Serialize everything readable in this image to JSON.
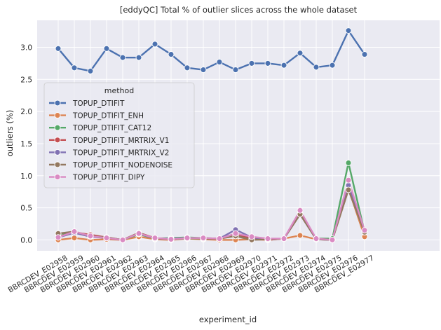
{
  "chart_data": {
    "type": "line",
    "title": "[eddyQC] Total % of outlier slices across the whole dataset",
    "xlabel": "experiment_id",
    "ylabel": "outliers (%)",
    "ylim": [
      -0.17,
      3.42
    ],
    "yticks": [
      0.0,
      0.5,
      1.0,
      1.5,
      2.0,
      2.5,
      3.0
    ],
    "ytick_labels": [
      "0.0",
      "0.5",
      "1.0",
      "1.5",
      "2.0",
      "2.5",
      "3.0"
    ],
    "grid": true,
    "legend_title": "method",
    "legend_position": "center-left",
    "categories": [
      "BBRCDEV_E02958",
      "BBRCDEV_E02959",
      "BBRCDEV_E02960",
      "BBRCDEV_E02961",
      "BBRCDEV_E02962",
      "BBRCDEV_E02963",
      "BBRCDEV_E02964",
      "BBRCDEV_E02965",
      "BBRCDEV_E02966",
      "BBRCDEV_E02967",
      "BBRCDEV_E02968",
      "BBRCDEV_E02969",
      "BBRCDEV_E02970",
      "BBRCDEV_E02971",
      "BBRCDEV_E02972",
      "BBRCDEV_E02973",
      "BBRCDEV_E02974",
      "BBRCDEV_E02975",
      "BBRCDEV_E02976",
      "BBRCDEV_E02977"
    ],
    "series": [
      {
        "name": "TOPUP_DTIFIT",
        "color": "#4c72b0",
        "values": [
          2.98,
          2.68,
          2.63,
          2.98,
          2.84,
          2.84,
          3.05,
          2.89,
          2.68,
          2.65,
          2.77,
          2.65,
          2.75,
          2.75,
          2.72,
          2.91,
          2.69,
          2.72,
          3.26,
          2.89
        ]
      },
      {
        "name": "TOPUP_DTIFIT_ENH",
        "color": "#dd8452",
        "values": [
          0.0,
          0.03,
          0.0,
          0.01,
          0.0,
          0.05,
          0.01,
          0.0,
          0.02,
          0.01,
          0.0,
          0.0,
          0.01,
          0.0,
          0.02,
          0.07,
          0.01,
          0.0,
          0.8,
          0.05
        ]
      },
      {
        "name": "TOPUP_DTIFIT_CAT12",
        "color": "#55a868",
        "values": [
          0.09,
          0.12,
          0.06,
          0.04,
          0.0,
          0.09,
          0.02,
          0.03,
          0.04,
          0.03,
          0.02,
          0.07,
          0.02,
          0.01,
          0.02,
          0.41,
          0.02,
          0.02,
          1.2,
          0.12
        ]
      },
      {
        "name": "TOPUP_DTIFIT_MRTRIX_V1",
        "color": "#c44e52",
        "values": [
          0.05,
          0.12,
          0.08,
          0.04,
          0.0,
          0.11,
          0.03,
          0.01,
          0.03,
          0.02,
          0.02,
          0.09,
          0.03,
          0.0,
          0.02,
          0.41,
          0.02,
          0.0,
          0.85,
          0.13
        ]
      },
      {
        "name": "TOPUP_DTIFIT_MRTRIX_V2",
        "color": "#8172b3",
        "values": [
          0.04,
          0.11,
          0.05,
          0.03,
          0.0,
          0.1,
          0.02,
          0.02,
          0.03,
          0.02,
          0.02,
          0.16,
          0.04,
          0.01,
          0.02,
          0.4,
          0.01,
          0.0,
          0.85,
          0.13
        ]
      },
      {
        "name": "TOPUP_DTIFIT_NODENOISE",
        "color": "#937860",
        "values": [
          0.1,
          0.13,
          0.06,
          0.04,
          0.0,
          0.11,
          0.02,
          0.01,
          0.02,
          0.02,
          0.02,
          0.06,
          0.0,
          0.01,
          0.02,
          0.4,
          0.01,
          0.0,
          0.78,
          0.12
        ]
      },
      {
        "name": "TOPUP_DTIFIT_DIPY",
        "color": "#da8bc3",
        "values": [
          0.04,
          0.13,
          0.06,
          0.03,
          0.0,
          0.1,
          0.03,
          0.01,
          0.03,
          0.03,
          0.02,
          0.1,
          0.05,
          0.02,
          0.02,
          0.46,
          0.02,
          0.0,
          0.93,
          0.15
        ]
      }
    ]
  }
}
